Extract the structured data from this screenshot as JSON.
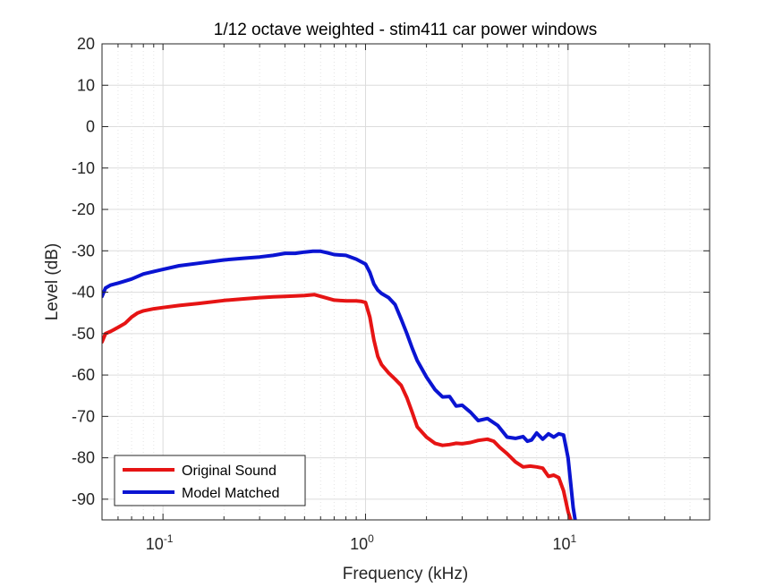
{
  "chart_data": {
    "type": "line",
    "title": "1/12 octave weighted - stim411 car power windows",
    "xlabel": "Frequency (kHz)",
    "ylabel": "Level (dB)",
    "xscale": "log",
    "xlim": [
      0.05,
      50
    ],
    "ylim": [
      -95,
      20
    ],
    "yticks": [
      20,
      10,
      0,
      -10,
      -20,
      -30,
      -40,
      -50,
      -60,
      -70,
      -80,
      -90
    ],
    "ytick_labels": [
      "20",
      "10",
      "0",
      "-10",
      "-20",
      "-30",
      "-40",
      "-50",
      "-60",
      "-70",
      "-80",
      "-90"
    ],
    "xticks": [
      {
        "value": 0.1,
        "base": "10",
        "exp": "-1"
      },
      {
        "value": 1,
        "base": "10",
        "exp": "0"
      },
      {
        "value": 10,
        "base": "10",
        "exp": "1"
      }
    ],
    "grid": true,
    "legend_position": "bottom-left",
    "series": [
      {
        "name": "Original Sound",
        "color": "#e61414",
        "x": [
          0.05,
          0.052,
          0.055,
          0.06,
          0.065,
          0.07,
          0.075,
          0.08,
          0.09,
          0.1,
          0.12,
          0.15,
          0.2,
          0.25,
          0.3,
          0.35,
          0.4,
          0.45,
          0.5,
          0.56,
          0.62,
          0.7,
          0.8,
          0.9,
          0.95,
          1.0,
          1.05,
          1.1,
          1.15,
          1.2,
          1.3,
          1.4,
          1.5,
          1.6,
          1.7,
          1.8,
          2.0,
          2.2,
          2.4,
          2.6,
          2.8,
          3.0,
          3.3,
          3.6,
          4.0,
          4.3,
          4.6,
          5.0,
          5.5,
          6.0,
          6.5,
          7.0,
          7.5,
          8.0,
          8.5,
          9.0,
          9.5,
          10.0,
          10.3,
          10.6
        ],
        "y": [
          -52,
          -50,
          -49.5,
          -48.5,
          -47.5,
          -46,
          -45,
          -44.5,
          -44,
          -43.7,
          -43.2,
          -42.7,
          -42,
          -41.6,
          -41.3,
          -41.1,
          -41,
          -40.9,
          -40.8,
          -40.6,
          -41.2,
          -41.9,
          -42.1,
          -42.1,
          -42.2,
          -42.5,
          -46,
          -51.5,
          -55.5,
          -57.5,
          -59.5,
          -61,
          -62.5,
          -65.5,
          -69,
          -72.5,
          -75,
          -76.5,
          -77,
          -76.8,
          -76.5,
          -76.6,
          -76.3,
          -75.8,
          -75.5,
          -76,
          -77.5,
          -79,
          -81,
          -82.2,
          -82,
          -82.2,
          -82.5,
          -84.5,
          -84.2,
          -84.8,
          -88,
          -93,
          -95,
          -96
        ]
      },
      {
        "name": "Model Matched",
        "color": "#0a14d2",
        "x": [
          0.05,
          0.052,
          0.055,
          0.06,
          0.065,
          0.07,
          0.08,
          0.09,
          0.1,
          0.12,
          0.15,
          0.2,
          0.25,
          0.3,
          0.35,
          0.4,
          0.45,
          0.5,
          0.55,
          0.6,
          0.65,
          0.7,
          0.8,
          0.9,
          1.0,
          1.05,
          1.1,
          1.15,
          1.2,
          1.3,
          1.4,
          1.5,
          1.6,
          1.7,
          1.8,
          2.0,
          2.2,
          2.4,
          2.6,
          2.8,
          3.0,
          3.3,
          3.6,
          4.0,
          4.5,
          5.0,
          5.5,
          6.0,
          6.3,
          6.6,
          7.0,
          7.5,
          8.0,
          8.5,
          9.0,
          9.5,
          10.0,
          10.3,
          10.6,
          11.0
        ],
        "y": [
          -41,
          -39,
          -38.3,
          -37.8,
          -37.3,
          -36.8,
          -35.6,
          -35,
          -34.5,
          -33.6,
          -33,
          -32.2,
          -31.8,
          -31.5,
          -31.1,
          -30.6,
          -30.6,
          -30.3,
          -30.1,
          -30.1,
          -30.5,
          -30.9,
          -31.1,
          -32,
          -33.2,
          -35.2,
          -38,
          -39.5,
          -40.3,
          -41.3,
          -43,
          -46.5,
          -50,
          -53.5,
          -56.5,
          -60.5,
          -63.5,
          -65.3,
          -65.2,
          -67.5,
          -67.3,
          -69,
          -71,
          -70.5,
          -72.2,
          -75,
          -75.3,
          -74.9,
          -76,
          -75.7,
          -74,
          -75.5,
          -74.2,
          -75,
          -74.2,
          -74.5,
          -80,
          -86,
          -92,
          -97
        ]
      }
    ]
  }
}
